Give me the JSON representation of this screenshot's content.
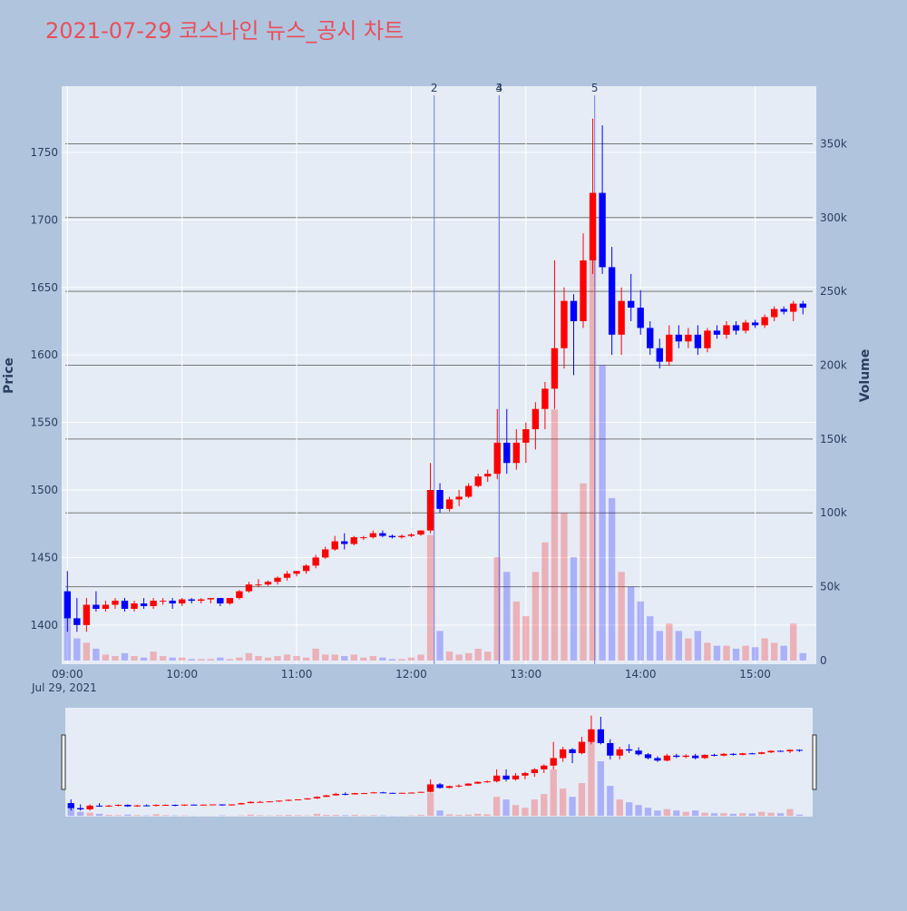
{
  "chart_data": {
    "type": "candlestick",
    "title": "2021-07-29 코스나인 뉴스_공시 차트",
    "y_label": "Price",
    "y2_label": "Volume",
    "x_date_label": "Jul 29, 2021",
    "increasing_color": "#ff0000",
    "decreasing_color": "#0000ff",
    "xlim": [
      "2021-07-29 08:57",
      "2021-07-29 15:32"
    ],
    "xticks": [
      {
        "value": "2021-07-29 09:00",
        "label": "09:00"
      },
      {
        "value": "2021-07-29 10:00",
        "label": "10:00"
      },
      {
        "value": "2021-07-29 11:00",
        "label": "11:00"
      },
      {
        "value": "2021-07-29 12:00",
        "label": "12:00"
      },
      {
        "value": "2021-07-29 13:00",
        "label": "13:00"
      },
      {
        "value": "2021-07-29 14:00",
        "label": "14:00"
      },
      {
        "value": "2021-07-29 15:00",
        "label": "15:00"
      }
    ],
    "ylim": [
      1371,
      1799
    ],
    "yticks": [
      1400,
      1450,
      1500,
      1550,
      1600,
      1650,
      1700,
      1750
    ],
    "y2lim": [
      -2500,
      389000
    ],
    "y2ticks": [
      {
        "value": 0,
        "label": "0"
      },
      {
        "value": 50000,
        "label": "50k"
      },
      {
        "value": 100000,
        "label": "100k"
      },
      {
        "value": 150000,
        "label": "150k"
      },
      {
        "value": 200000,
        "label": "200k"
      },
      {
        "value": 250000,
        "label": "250k"
      },
      {
        "value": 300000,
        "label": "300k"
      },
      {
        "value": 350000,
        "label": "350k"
      }
    ],
    "events": [
      {
        "x": "2021-07-29 12:12",
        "label": "2"
      },
      {
        "x": "2021-07-29 12:46",
        "label": "3"
      },
      {
        "x": "2021-07-29 12:46",
        "label": "4"
      },
      {
        "x": "2021-07-29 13:36",
        "label": "5"
      }
    ],
    "x": [
      "2021-07-29 09:00",
      "2021-07-29 09:05",
      "2021-07-29 09:10",
      "2021-07-29 09:15",
      "2021-07-29 09:20",
      "2021-07-29 09:25",
      "2021-07-29 09:30",
      "2021-07-29 09:35",
      "2021-07-29 09:40",
      "2021-07-29 09:45",
      "2021-07-29 09:50",
      "2021-07-29 09:55",
      "2021-07-29 10:00",
      "2021-07-29 10:05",
      "2021-07-29 10:10",
      "2021-07-29 10:15",
      "2021-07-29 10:20",
      "2021-07-29 10:25",
      "2021-07-29 10:30",
      "2021-07-29 10:35",
      "2021-07-29 10:40",
      "2021-07-29 10:45",
      "2021-07-29 10:50",
      "2021-07-29 10:55",
      "2021-07-29 11:00",
      "2021-07-29 11:05",
      "2021-07-29 11:10",
      "2021-07-29 11:15",
      "2021-07-29 11:20",
      "2021-07-29 11:25",
      "2021-07-29 11:30",
      "2021-07-29 11:35",
      "2021-07-29 11:40",
      "2021-07-29 11:45",
      "2021-07-29 11:50",
      "2021-07-29 11:55",
      "2021-07-29 12:00",
      "2021-07-29 12:05",
      "2021-07-29 12:10",
      "2021-07-29 12:15",
      "2021-07-29 12:20",
      "2021-07-29 12:25",
      "2021-07-29 12:30",
      "2021-07-29 12:35",
      "2021-07-29 12:40",
      "2021-07-29 12:45",
      "2021-07-29 12:50",
      "2021-07-29 12:55",
      "2021-07-29 13:00",
      "2021-07-29 13:05",
      "2021-07-29 13:10",
      "2021-07-29 13:15",
      "2021-07-29 13:20",
      "2021-07-29 13:25",
      "2021-07-29 13:30",
      "2021-07-29 13:35",
      "2021-07-29 13:40",
      "2021-07-29 13:45",
      "2021-07-29 13:50",
      "2021-07-29 13:55",
      "2021-07-29 14:00",
      "2021-07-29 14:05",
      "2021-07-29 14:10",
      "2021-07-29 14:15",
      "2021-07-29 14:20",
      "2021-07-29 14:25",
      "2021-07-29 14:30",
      "2021-07-29 14:35",
      "2021-07-29 14:40",
      "2021-07-29 14:45",
      "2021-07-29 14:50",
      "2021-07-29 14:55",
      "2021-07-29 15:00",
      "2021-07-29 15:05",
      "2021-07-29 15:10",
      "2021-07-29 15:15",
      "2021-07-29 15:20",
      "2021-07-29 15:25"
    ],
    "open": [
      1425,
      1405,
      1400,
      1415,
      1412,
      1415,
      1418,
      1412,
      1416,
      1414,
      1418,
      1418,
      1416,
      1419,
      1418,
      1419,
      1420,
      1416,
      1420,
      1425,
      1430,
      1430,
      1432,
      1435,
      1438,
      1440,
      1444,
      1450,
      1456,
      1462,
      1460,
      1465,
      1465,
      1468,
      1466,
      1465,
      1466,
      1467,
      1470,
      1500,
      1486,
      1493,
      1495,
      1503,
      1510,
      1512,
      1535,
      1520,
      1535,
      1545,
      1560,
      1575,
      1605,
      1640,
      1625,
      1670,
      1720,
      1665,
      1615,
      1640,
      1635,
      1620,
      1605,
      1595,
      1615,
      1610,
      1615,
      1605,
      1618,
      1615,
      1622,
      1618,
      1624,
      1622,
      1628,
      1634,
      1632,
      1638
    ],
    "high": [
      1440,
      1420,
      1420,
      1425,
      1418,
      1420,
      1420,
      1418,
      1420,
      1420,
      1420,
      1420,
      1420,
      1420,
      1420,
      1420,
      1420,
      1420,
      1426,
      1432,
      1434,
      1433,
      1436,
      1440,
      1440,
      1445,
      1452,
      1458,
      1466,
      1468,
      1466,
      1466,
      1470,
      1470,
      1467,
      1467,
      1468,
      1470,
      1520,
      1505,
      1495,
      1500,
      1505,
      1512,
      1515,
      1560,
      1560,
      1545,
      1550,
      1565,
      1580,
      1670,
      1650,
      1645,
      1690,
      1775,
      1770,
      1680,
      1650,
      1660,
      1648,
      1625,
      1612,
      1622,
      1622,
      1620,
      1622,
      1620,
      1622,
      1625,
      1625,
      1626,
      1626,
      1630,
      1636,
      1636,
      1640,
      1640
    ],
    "low": [
      1395,
      1395,
      1395,
      1410,
      1410,
      1412,
      1410,
      1410,
      1412,
      1412,
      1415,
      1412,
      1414,
      1416,
      1416,
      1416,
      1414,
      1415,
      1419,
      1424,
      1428,
      1429,
      1430,
      1433,
      1436,
      1438,
      1442,
      1449,
      1455,
      1456,
      1459,
      1463,
      1464,
      1465,
      1464,
      1464,
      1465,
      1466,
      1468,
      1483,
      1484,
      1488,
      1494,
      1502,
      1506,
      1508,
      1512,
      1515,
      1520,
      1530,
      1545,
      1560,
      1590,
      1585,
      1620,
      1660,
      1660,
      1600,
      1600,
      1625,
      1615,
      1600,
      1590,
      1592,
      1605,
      1605,
      1600,
      1602,
      1612,
      1612,
      1615,
      1616,
      1620,
      1620,
      1625,
      1630,
      1625,
      1630
    ],
    "close": [
      1405,
      1400,
      1415,
      1412,
      1415,
      1418,
      1412,
      1416,
      1414,
      1418,
      1418,
      1416,
      1419,
      1418,
      1419,
      1420,
      1416,
      1420,
      1425,
      1430,
      1430,
      1432,
      1435,
      1438,
      1440,
      1444,
      1450,
      1456,
      1462,
      1460,
      1465,
      1465,
      1468,
      1466,
      1465,
      1466,
      1467,
      1470,
      1500,
      1486,
      1493,
      1495,
      1503,
      1510,
      1512,
      1535,
      1520,
      1535,
      1545,
      1560,
      1575,
      1605,
      1640,
      1625,
      1670,
      1720,
      1665,
      1615,
      1640,
      1635,
      1620,
      1605,
      1595,
      1615,
      1610,
      1615,
      1605,
      1618,
      1615,
      1622,
      1618,
      1624,
      1622,
      1628,
      1634,
      1632,
      1638,
      1635
    ],
    "volume": [
      30000,
      15000,
      12000,
      8000,
      4000,
      3000,
      5000,
      3000,
      2000,
      6000,
      3000,
      2000,
      2000,
      1000,
      1000,
      1000,
      2000,
      1000,
      2000,
      5000,
      3000,
      2000,
      3000,
      4000,
      3000,
      2000,
      8000,
      4000,
      4000,
      3000,
      4000,
      2000,
      3000,
      2000,
      1000,
      1000,
      2000,
      4000,
      85000,
      20000,
      6000,
      4000,
      5000,
      8000,
      6000,
      70000,
      60000,
      40000,
      30000,
      60000,
      80000,
      170000,
      100000,
      70000,
      120000,
      300000,
      200000,
      110000,
      60000,
      50000,
      40000,
      30000,
      20000,
      25000,
      20000,
      15000,
      20000,
      12000,
      10000,
      10000,
      8000,
      10000,
      9000,
      15000,
      12000,
      10000,
      25000,
      5000
    ]
  }
}
